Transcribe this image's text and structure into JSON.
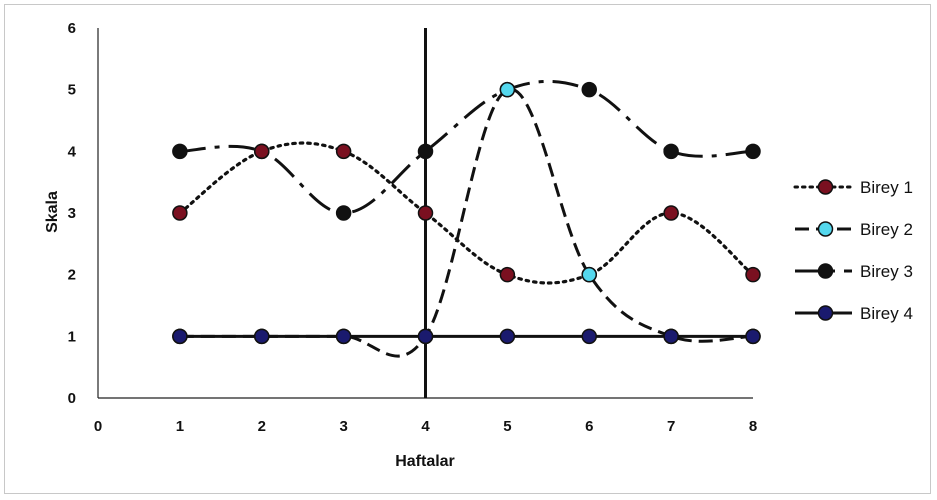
{
  "chart_data": {
    "type": "line",
    "title": "",
    "xlabel": "Haftalar",
    "ylabel": "Skala",
    "xlim": [
      0,
      8
    ],
    "ylim": [
      0,
      6
    ],
    "x_ticks": [
      "0",
      "1",
      "2",
      "3",
      "4",
      "5",
      "6",
      "7",
      "8"
    ],
    "y_ticks": [
      "0",
      "1",
      "2",
      "3",
      "4",
      "5",
      "6"
    ],
    "x": [
      1,
      2,
      3,
      4,
      5,
      6,
      7,
      8
    ],
    "vertical_line_x": 4,
    "grid": false,
    "legend_position": "right",
    "series": [
      {
        "name": "Birey 1",
        "values": [
          3,
          4,
          4,
          3,
          2,
          2,
          3,
          2
        ],
        "line_style": "dotted",
        "marker_color": "#7a1020",
        "line_color": "#111111"
      },
      {
        "name": "Birey 2",
        "values": [
          1,
          1,
          1,
          1,
          5,
          2,
          1,
          1
        ],
        "line_style": "dashed",
        "marker_color": "#55d8ee",
        "line_color": "#111111"
      },
      {
        "name": "Birey 3",
        "values": [
          4,
          4,
          3,
          4,
          5,
          5,
          4,
          4
        ],
        "line_style": "dashdot",
        "marker_color": "#111111",
        "line_color": "#111111"
      },
      {
        "name": "Birey 4",
        "values": [
          1,
          1,
          1,
          1,
          1,
          1,
          1,
          1
        ],
        "line_style": "solid",
        "marker_color": "#1a1a6e",
        "line_color": "#111111"
      }
    ]
  }
}
